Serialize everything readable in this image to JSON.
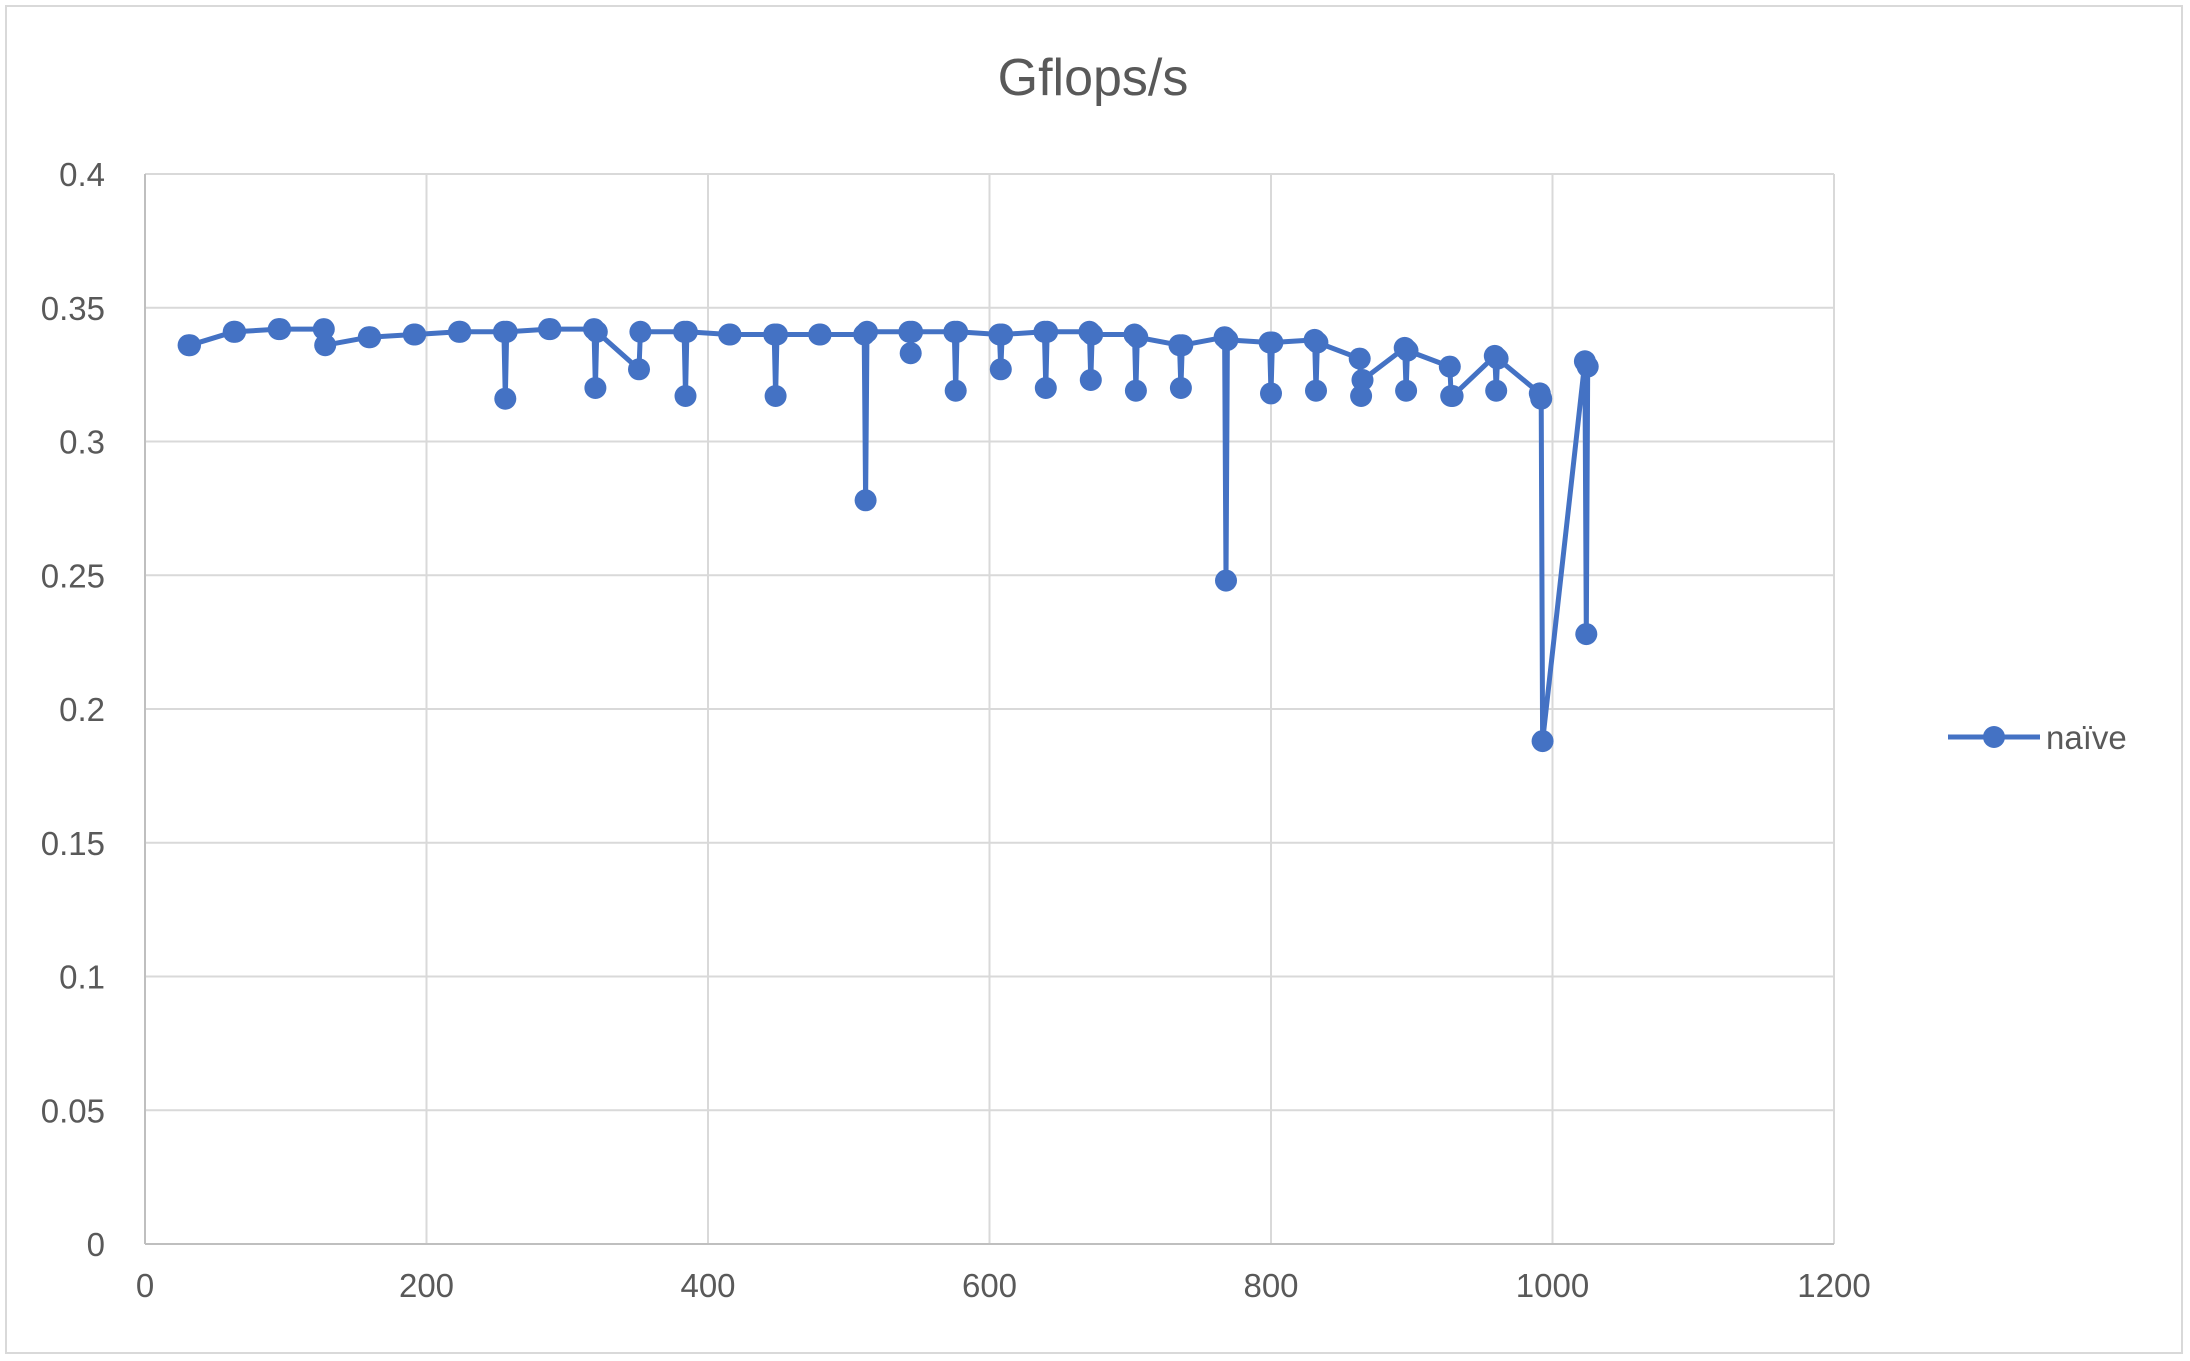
{
  "chart_data": {
    "type": "line",
    "title": "Gflops/s",
    "xlabel": "",
    "ylabel": "",
    "xlim": [
      0,
      1200
    ],
    "ylim": [
      0,
      0.4
    ],
    "x_ticks": [
      "0",
      "200",
      "400",
      "600",
      "800",
      "1000",
      "1200"
    ],
    "y_ticks": [
      "0",
      "0.05",
      "0.1",
      "0.15",
      "0.2",
      "0.25",
      "0.3",
      "0.35",
      "0.4"
    ],
    "grid": true,
    "legend_position": "right",
    "color": "#4472c4",
    "series": [
      {
        "name": "naïve",
        "points": [
          [
            31,
            0.336
          ],
          [
            32,
            0.336
          ],
          [
            63,
            0.341
          ],
          [
            64,
            0.341
          ],
          [
            95,
            0.342
          ],
          [
            96,
            0.342
          ],
          [
            127,
            0.342
          ],
          [
            128,
            0.336
          ],
          [
            159,
            0.339
          ],
          [
            160,
            0.339
          ],
          [
            191,
            0.34
          ],
          [
            192,
            0.34
          ],
          [
            223,
            0.341
          ],
          [
            224,
            0.341
          ],
          [
            255,
            0.341
          ],
          [
            256,
            0.316
          ],
          [
            257,
            0.341
          ],
          [
            287,
            0.342
          ],
          [
            288,
            0.342
          ],
          [
            319,
            0.342
          ],
          [
            320,
            0.32
          ],
          [
            321,
            0.341
          ],
          [
            351,
            0.327
          ],
          [
            352,
            0.341
          ],
          [
            383,
            0.341
          ],
          [
            384,
            0.317
          ],
          [
            385,
            0.341
          ],
          [
            415,
            0.34
          ],
          [
            416,
            0.34
          ],
          [
            447,
            0.34
          ],
          [
            448,
            0.317
          ],
          [
            449,
            0.34
          ],
          [
            479,
            0.34
          ],
          [
            480,
            0.34
          ],
          [
            511,
            0.34
          ],
          [
            512,
            0.278
          ],
          [
            513,
            0.341
          ],
          [
            543,
            0.341
          ],
          [
            544,
            0.333
          ],
          [
            545,
            0.341
          ],
          [
            575,
            0.341
          ],
          [
            576,
            0.319
          ],
          [
            577,
            0.341
          ],
          [
            607,
            0.34
          ],
          [
            608,
            0.327
          ],
          [
            609,
            0.34
          ],
          [
            639,
            0.341
          ],
          [
            640,
            0.32
          ],
          [
            641,
            0.341
          ],
          [
            671,
            0.341
          ],
          [
            672,
            0.323
          ],
          [
            673,
            0.34
          ],
          [
            703,
            0.34
          ],
          [
            704,
            0.319
          ],
          [
            705,
            0.339
          ],
          [
            735,
            0.336
          ],
          [
            736,
            0.32
          ],
          [
            737,
            0.336
          ],
          [
            767,
            0.339
          ],
          [
            768,
            0.248
          ],
          [
            769,
            0.338
          ],
          [
            799,
            0.337
          ],
          [
            800,
            0.318
          ],
          [
            801,
            0.337
          ],
          [
            831,
            0.338
          ],
          [
            832,
            0.319
          ],
          [
            833,
            0.337
          ],
          [
            863,
            0.331
          ],
          [
            864,
            0.317
          ],
          [
            865,
            0.323
          ],
          [
            895,
            0.335
          ],
          [
            896,
            0.319
          ],
          [
            897,
            0.334
          ],
          [
            927,
            0.328
          ],
          [
            928,
            0.317
          ],
          [
            929,
            0.317
          ],
          [
            959,
            0.332
          ],
          [
            960,
            0.319
          ],
          [
            961,
            0.331
          ],
          [
            991,
            0.318
          ],
          [
            992,
            0.316
          ],
          [
            993,
            0.188
          ],
          [
            1023,
            0.33
          ],
          [
            1024,
            0.228
          ],
          [
            1025,
            0.328
          ]
        ]
      }
    ]
  }
}
